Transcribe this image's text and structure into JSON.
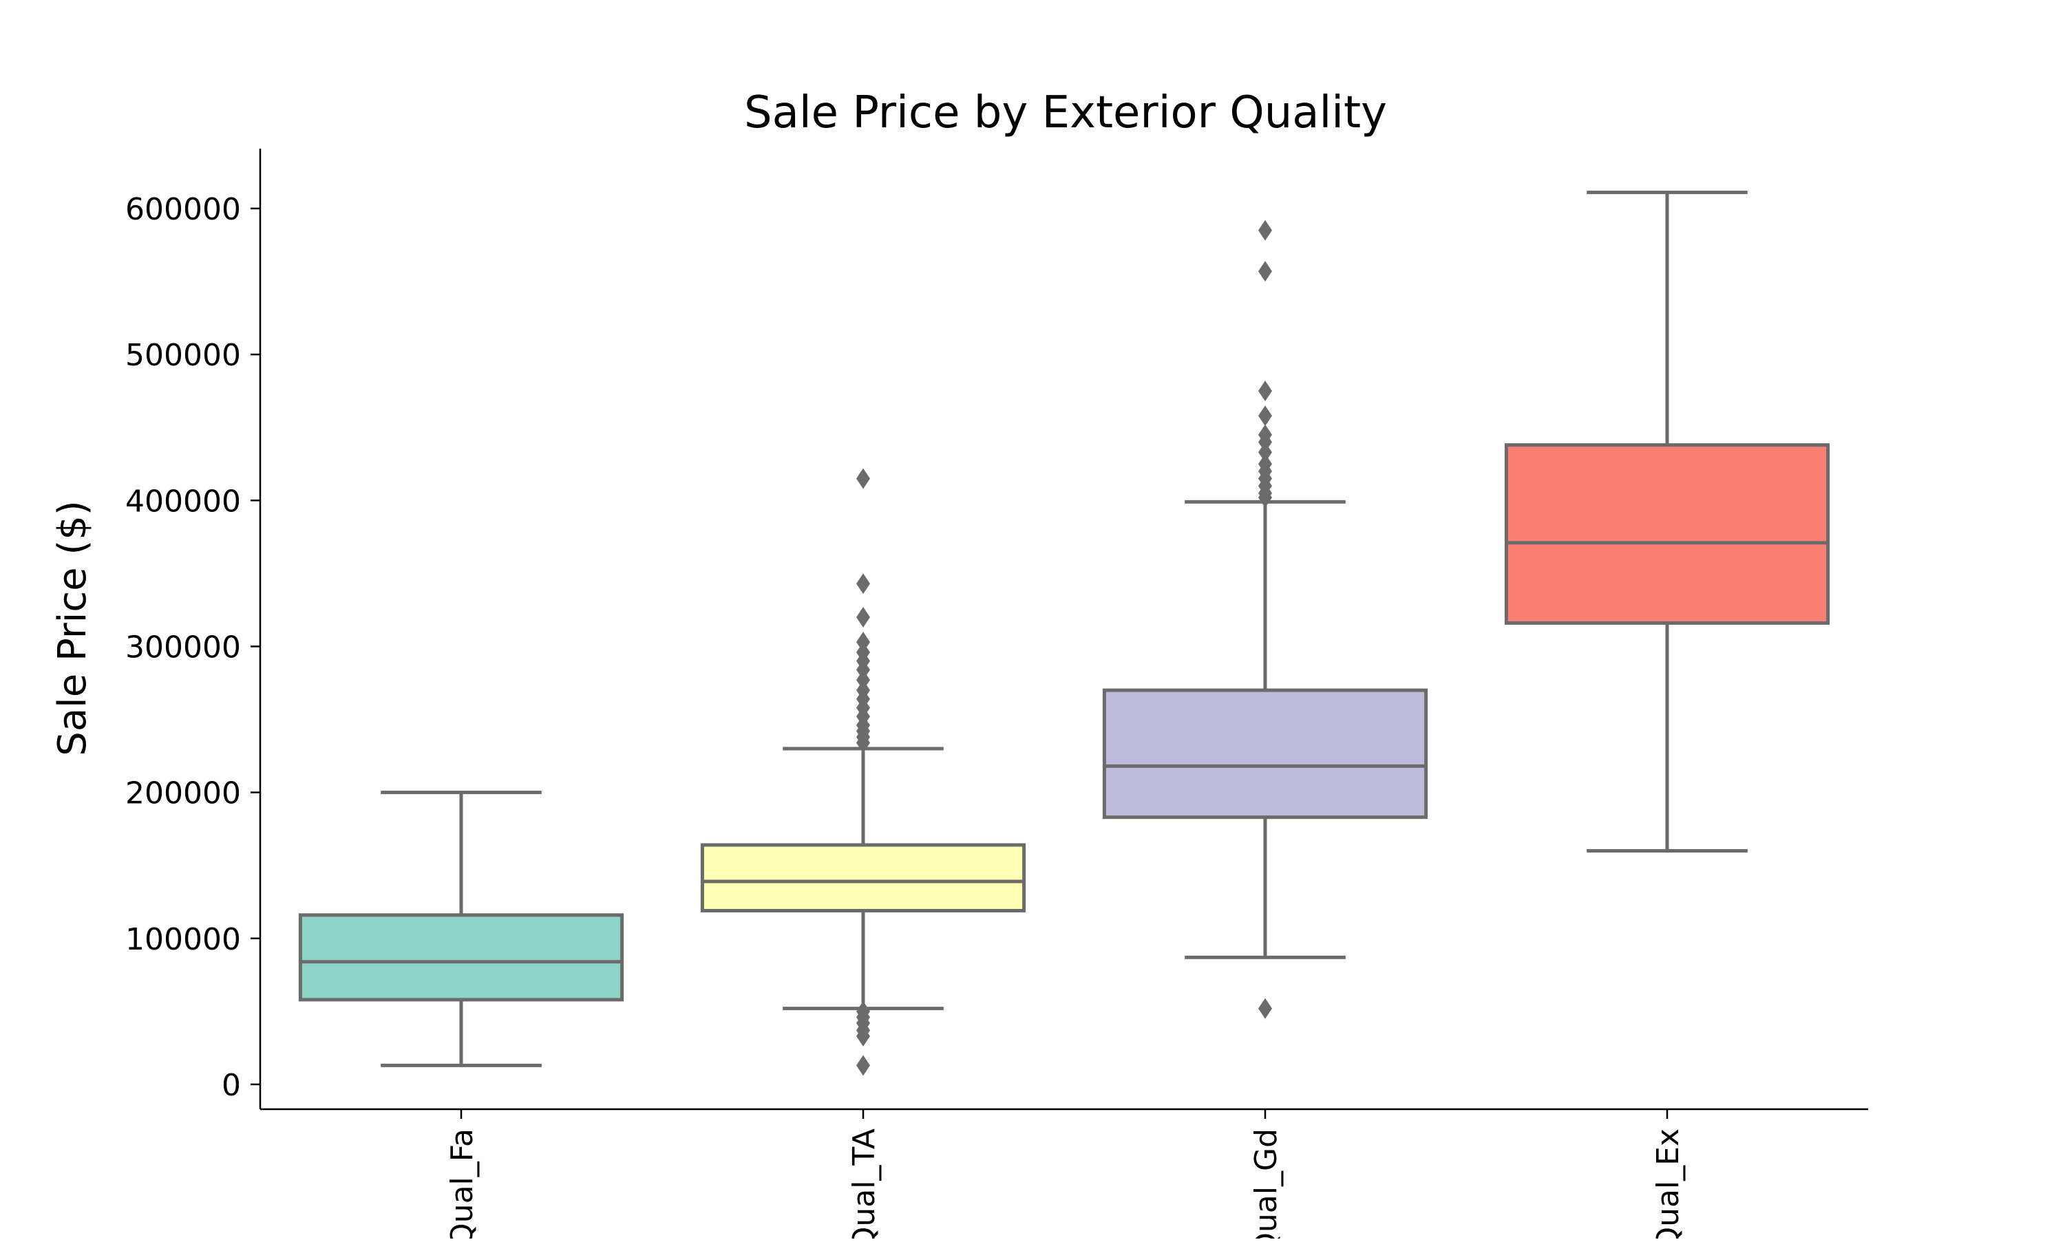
{
  "chart_data": {
    "type": "box",
    "title": "Sale Price by Exterior Quality",
    "xlabel": "",
    "ylabel": "Sale Price ($)",
    "ylim": [
      -17000,
      641000
    ],
    "y_ticks": [
      0,
      100000,
      200000,
      300000,
      400000,
      500000,
      600000
    ],
    "y_tick_labels": [
      "0",
      "100000",
      "200000",
      "300000",
      "400000",
      "500000",
      "600000"
    ],
    "categories": [
      "ExterQual_Fa",
      "ExterQual_TA",
      "ExterQual_Gd",
      "ExterQual_Ex"
    ],
    "visible_category_labels": [
      "Qual_Fa",
      "Qual_TA",
      "Qual_Gd",
      "Qual_Ex"
    ],
    "grid": false,
    "boxes": [
      {
        "category": "ExterQual_Fa",
        "color": "#8dd3c7",
        "whisker_low": 13000,
        "q1": 58000,
        "median": 84000,
        "q3": 116000,
        "whisker_high": 200000,
        "outliers": []
      },
      {
        "category": "ExterQual_TA",
        "color": "#ffffb3",
        "whisker_low": 52000,
        "q1": 119000,
        "median": 139000,
        "q3": 164000,
        "whisker_high": 230000,
        "outliers": [
          415000,
          343000,
          320000,
          303000,
          296000,
          290000,
          284000,
          277000,
          270000,
          264000,
          258000,
          252000,
          246000,
          242000,
          238000,
          234000,
          50000,
          46000,
          42000,
          37000,
          33000,
          13000
        ]
      },
      {
        "category": "ExterQual_Gd",
        "color": "#bebada",
        "whisker_low": 87000,
        "q1": 183000,
        "median": 218000,
        "q3": 270000,
        "whisker_high": 399000,
        "outliers": [
          585000,
          557000,
          475000,
          458000,
          445000,
          440000,
          433000,
          425000,
          420000,
          415000,
          410000,
          405000,
          402000,
          52000
        ]
      },
      {
        "category": "ExterQual_Ex",
        "color": "#fb8072",
        "whisker_low": 160000,
        "q1": 316000,
        "median": 371000,
        "q3": 438000,
        "whisker_high": 611000,
        "outliers": []
      }
    ],
    "edge_color": "#6b6b6b"
  }
}
